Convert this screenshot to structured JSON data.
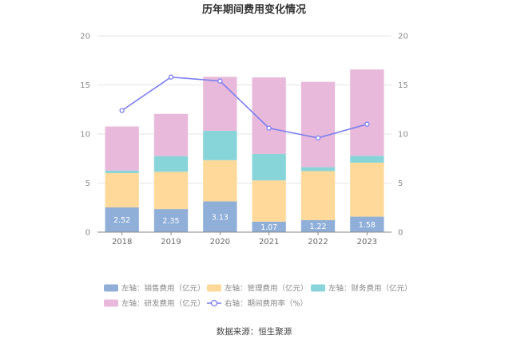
{
  "chart_data": {
    "type": "bar",
    "title": "历年期间费用变化情况",
    "categories": [
      "2018",
      "2019",
      "2020",
      "2021",
      "2022",
      "2023"
    ],
    "stacked": true,
    "left_axis": {
      "ylim": [
        0,
        20
      ],
      "ticks": [
        "0",
        "5",
        "10",
        "15",
        "20"
      ]
    },
    "right_axis": {
      "ylim": [
        0,
        20
      ],
      "ticks": [
        "0",
        "5",
        "10",
        "15",
        "20"
      ]
    },
    "series": [
      {
        "name": "左轴：销售费用（亿元）",
        "axis": "left",
        "type": "bar",
        "color": "#8fafd9",
        "values": [
          2.52,
          2.35,
          3.13,
          1.07,
          1.22,
          1.58
        ],
        "data_labels": [
          "2.52",
          "2.35",
          "3.13",
          "1.07",
          "1.22",
          "1.58"
        ]
      },
      {
        "name": "左轴：管理费用（亿元）",
        "axis": "left",
        "type": "bar",
        "color": "#ffd99a",
        "values": [
          3.5,
          3.8,
          4.2,
          4.2,
          5.0,
          5.5
        ]
      },
      {
        "name": "左轴：财务费用（亿元）",
        "axis": "left",
        "type": "bar",
        "color": "#88d5d9",
        "values": [
          0.25,
          1.6,
          3.0,
          2.7,
          0.4,
          0.7
        ]
      },
      {
        "name": "左轴：研发费用（亿元）",
        "axis": "left",
        "type": "bar",
        "color": "#e8b9da",
        "values": [
          4.5,
          4.3,
          5.5,
          7.8,
          8.7,
          8.8
        ]
      },
      {
        "name": "右轴：期间费用率（%）",
        "axis": "right",
        "type": "line",
        "color": "#7b7ff0",
        "values": [
          12.4,
          15.8,
          15.4,
          10.6,
          9.6,
          11.0
        ]
      }
    ],
    "legend_position": "bottom",
    "grid": true
  },
  "source": "数据来源：恒生聚源"
}
